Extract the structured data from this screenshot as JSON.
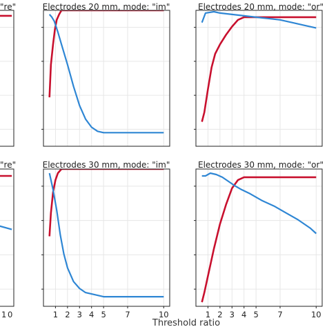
{
  "chart_data": [
    {
      "id": "p1",
      "type": "line",
      "title": "\"re\"",
      "series": [
        {
          "color": "#c8102e",
          "points": [
            [
              1,
              0.96
            ],
            [
              10,
              0.96
            ]
          ]
        }
      ]
    },
    {
      "id": "p2",
      "type": "line",
      "title": "Electrodes 20 mm, mode: \"im\"",
      "xlim": [
        0,
        10.5
      ],
      "ylim": [
        0,
        1
      ],
      "series": [
        {
          "color": "#c8102e",
          "points": [
            [
              0.5,
              0.36
            ],
            [
              0.62,
              0.6
            ],
            [
              0.8,
              0.75
            ],
            [
              0.95,
              0.86
            ],
            [
              1.1,
              0.93
            ],
            [
              1.3,
              0.97
            ],
            [
              1.5,
              1
            ],
            [
              10,
              1
            ]
          ]
        },
        {
          "color": "#2e86d4",
          "points": [
            [
              0.5,
              0.97
            ],
            [
              0.7,
              0.95
            ],
            [
              0.9,
              0.92
            ],
            [
              1.2,
              0.84
            ],
            [
              1.5,
              0.75
            ],
            [
              2,
              0.6
            ],
            [
              2.5,
              0.44
            ],
            [
              3,
              0.3
            ],
            [
              3.5,
              0.2
            ],
            [
              4,
              0.14
            ],
            [
              4.5,
              0.11
            ],
            [
              5,
              0.1
            ],
            [
              6,
              0.1
            ],
            [
              7,
              0.1
            ],
            [
              8,
              0.1
            ],
            [
              10,
              0.1
            ]
          ]
        }
      ]
    },
    {
      "id": "p3",
      "type": "line",
      "title": "Electrodes 20 mm, mode: \"or\"",
      "xlim": [
        0,
        10.5
      ],
      "ylim": [
        0,
        1
      ],
      "series": [
        {
          "color": "#c8102e",
          "points": [
            [
              0.5,
              0.18
            ],
            [
              0.7,
              0.25
            ],
            [
              1,
              0.42
            ],
            [
              1.3,
              0.58
            ],
            [
              1.6,
              0.68
            ],
            [
              2,
              0.75
            ],
            [
              2.5,
              0.82
            ],
            [
              3,
              0.88
            ],
            [
              3.5,
              0.93
            ],
            [
              4,
              0.95
            ],
            [
              5,
              0.95
            ],
            [
              10,
              0.95
            ]
          ]
        },
        {
          "color": "#2e86d4",
          "points": [
            [
              0.5,
              0.91
            ],
            [
              0.8,
              0.98
            ],
            [
              1.5,
              0.99
            ],
            [
              2,
              0.98
            ],
            [
              3,
              0.97
            ],
            [
              4,
              0.96
            ],
            [
              5,
              0.95
            ],
            [
              6,
              0.94
            ],
            [
              7,
              0.93
            ],
            [
              8,
              0.91
            ],
            [
              9,
              0.89
            ],
            [
              10,
              0.87
            ]
          ]
        }
      ]
    },
    {
      "id": "p4",
      "type": "line",
      "title": "\"re\"",
      "series": [
        {
          "color": "#c8102e",
          "points": [
            [
              1,
              0.95
            ],
            [
              10,
              0.95
            ]
          ]
        },
        {
          "color": "#2e86d4",
          "points": [
            [
              1,
              0.65
            ],
            [
              5,
              0.6
            ],
            [
              10,
              0.56
            ]
          ]
        }
      ]
    },
    {
      "id": "p5",
      "type": "line",
      "title": "Electrodes 30 mm, mode: \"im\"",
      "xlim": [
        0,
        10.5
      ],
      "ylim": [
        0,
        1
      ],
      "series": [
        {
          "color": "#c8102e",
          "points": [
            [
              0.5,
              0.51
            ],
            [
              0.62,
              0.68
            ],
            [
              0.8,
              0.83
            ],
            [
              1,
              0.92
            ],
            [
              1.2,
              0.97
            ],
            [
              1.5,
              1
            ],
            [
              10,
              1
            ]
          ]
        },
        {
          "color": "#2e86d4",
          "points": [
            [
              0.5,
              0.97
            ],
            [
              0.8,
              0.85
            ],
            [
              1.1,
              0.7
            ],
            [
              1.4,
              0.52
            ],
            [
              1.7,
              0.38
            ],
            [
              2,
              0.28
            ],
            [
              2.5,
              0.18
            ],
            [
              3,
              0.13
            ],
            [
              3.5,
              0.1
            ],
            [
              4,
              0.09
            ],
            [
              4.5,
              0.08
            ],
            [
              5,
              0.07
            ],
            [
              7,
              0.07
            ],
            [
              10,
              0.07
            ]
          ]
        }
      ]
    },
    {
      "id": "p6",
      "type": "line",
      "title": "Electrodes 30 mm, mode: \"or\"",
      "xlim": [
        0,
        10.5
      ],
      "ylim": [
        0,
        1
      ],
      "series": [
        {
          "color": "#c8102e",
          "points": [
            [
              0.5,
              0.03
            ],
            [
              0.7,
              0.1
            ],
            [
              1,
              0.22
            ],
            [
              1.5,
              0.42
            ],
            [
              2,
              0.6
            ],
            [
              2.5,
              0.74
            ],
            [
              3,
              0.86
            ],
            [
              3.5,
              0.92
            ],
            [
              4,
              0.94
            ],
            [
              5,
              0.94
            ],
            [
              10,
              0.94
            ]
          ]
        },
        {
          "color": "#2e86d4",
          "points": [
            [
              0.5,
              0.95
            ],
            [
              0.8,
              0.95
            ],
            [
              1.2,
              0.97
            ],
            [
              1.7,
              0.96
            ],
            [
              2.2,
              0.94
            ],
            [
              2.7,
              0.91
            ],
            [
              3.2,
              0.88
            ],
            [
              3.8,
              0.85
            ],
            [
              4.5,
              0.82
            ],
            [
              5.5,
              0.77
            ],
            [
              6.5,
              0.73
            ],
            [
              7.5,
              0.68
            ],
            [
              8.5,
              0.63
            ],
            [
              9.5,
              0.57
            ],
            [
              10,
              0.53
            ]
          ]
        }
      ]
    }
  ],
  "x_ticks": [
    "1",
    "2",
    "3",
    "4",
    "5",
    "7",
    "10"
  ],
  "x_tick_values": [
    1,
    2,
    3,
    4,
    5,
    7,
    10
  ],
  "left_x_ticks": [
    "1",
    "0"
  ],
  "xlabel": "Threshold ratio"
}
